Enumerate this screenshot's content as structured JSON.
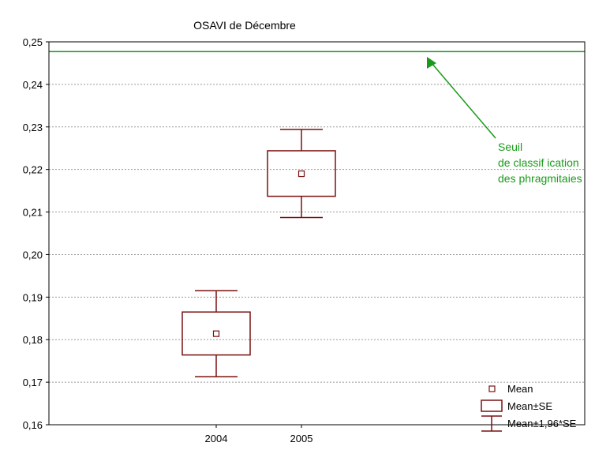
{
  "chart_data": {
    "type": "box",
    "title": "OSAVI de Décembre",
    "xlabel": "",
    "ylabel": "",
    "categories": [
      "2004",
      "2005"
    ],
    "ylim": [
      0.16,
      0.25
    ],
    "y_ticks": [
      "0,16",
      "0,17",
      "0,18",
      "0,19",
      "0,20",
      "0,21",
      "0,22",
      "0,23",
      "0,24",
      "0,25"
    ],
    "grid": "horizontal dashed",
    "boxes": [
      {
        "category": "2004",
        "mean": 0.1814,
        "se_low": 0.1764,
        "se_high": 0.1865,
        "ci_low": 0.1713,
        "ci_high": 0.1915
      },
      {
        "category": "2005",
        "mean": 0.219,
        "se_low": 0.2137,
        "se_high": 0.2244,
        "ci_low": 0.2087,
        "ci_high": 0.2294
      }
    ],
    "threshold": {
      "value": 0.2477,
      "color": "#1a9a1a",
      "label_lines": [
        "Seuil",
        "de classif ication",
        "des phragmitaies"
      ]
    },
    "series_color": "#7a1010",
    "legend": {
      "placement": "bottom-right",
      "items": [
        "Mean",
        "Mean±SE",
        "Mean±1,96*SE"
      ]
    }
  }
}
